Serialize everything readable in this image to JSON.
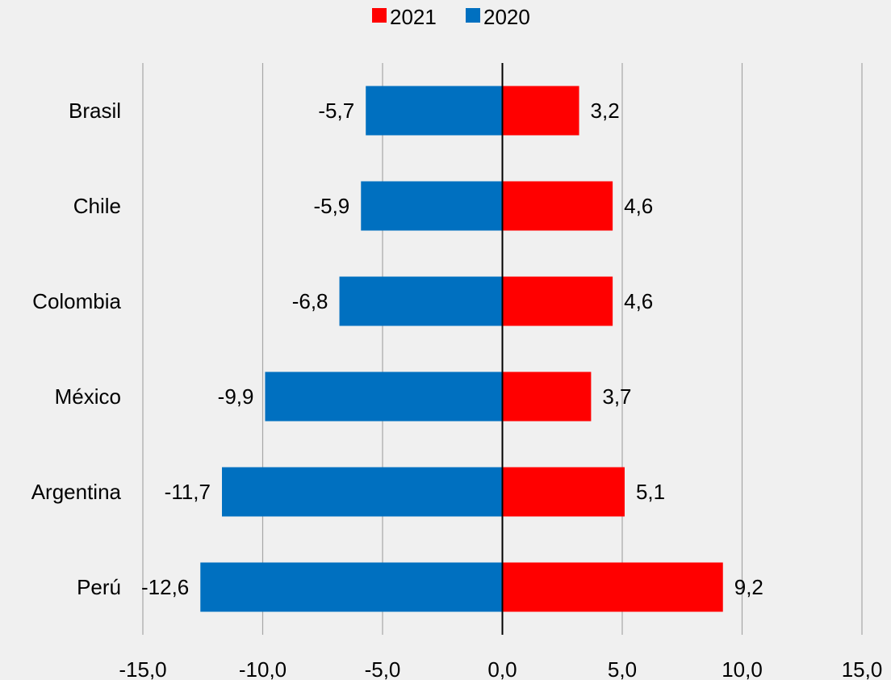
{
  "chart_data": {
    "type": "bar",
    "orientation": "horizontal",
    "categories": [
      "Brasil",
      "Chile",
      "Colombia",
      "México",
      "Argentina",
      "Perú"
    ],
    "series": [
      {
        "name": "2020",
        "color": "#0070c0",
        "values": [
          -5.7,
          -5.9,
          -6.8,
          -9.9,
          -11.7,
          -12.6
        ],
        "labels": [
          "-5,7",
          "-5,9",
          "-6,8",
          "-9,9",
          "-11,7",
          "-12,6"
        ]
      },
      {
        "name": "2021",
        "color": "#ff0000",
        "values": [
          3.2,
          4.6,
          4.6,
          3.7,
          5.1,
          9.2
        ],
        "labels": [
          "3,2",
          "4,6",
          "4,6",
          "3,7",
          "5,1",
          "9,2"
        ]
      }
    ],
    "legend_order": [
      "2021",
      "2020"
    ],
    "legend_position": "top-center",
    "xlim": [
      -15,
      15
    ],
    "xticks": [
      -15,
      -10,
      -5,
      0,
      5,
      10,
      15
    ],
    "xtick_labels": [
      "-15,0",
      "-10,0",
      "-5,0",
      "0,0",
      "5,0",
      "10,0",
      "15,0"
    ],
    "grid": "vertical",
    "title": "",
    "xlabel": "",
    "ylabel": ""
  }
}
